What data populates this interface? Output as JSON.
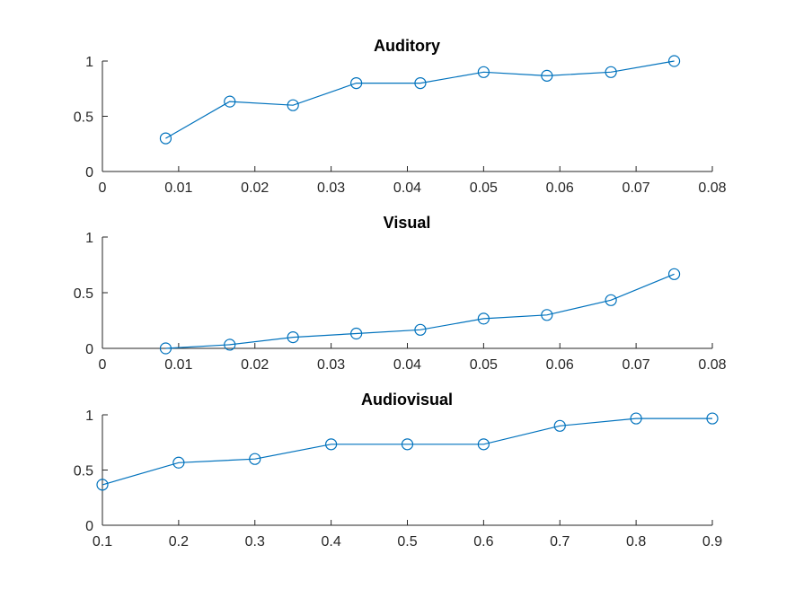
{
  "colors": {
    "series": "#0072BD",
    "axis": "#262626",
    "background": "#ffffff"
  },
  "chart_data": [
    {
      "type": "line",
      "title": "Auditory",
      "xlabel": "",
      "ylabel": "",
      "xlim": [
        0,
        0.08
      ],
      "ylim": [
        0,
        1
      ],
      "xticks": [
        0,
        0.01,
        0.02,
        0.03,
        0.04,
        0.05,
        0.06,
        0.07,
        0.08
      ],
      "xtick_labels": [
        "0",
        "0.01",
        "0.02",
        "0.03",
        "0.04",
        "0.05",
        "0.06",
        "0.07",
        "0.08"
      ],
      "yticks": [
        0,
        0.5,
        1
      ],
      "ytick_labels": [
        "0",
        "0.5",
        "1"
      ],
      "grid": false,
      "marker": "circle",
      "x": [
        0.0083,
        0.0167,
        0.025,
        0.0333,
        0.0417,
        0.05,
        0.0583,
        0.0667,
        0.075
      ],
      "y": [
        0.3,
        0.633,
        0.6,
        0.8,
        0.8,
        0.9,
        0.867,
        0.9,
        1.0
      ]
    },
    {
      "type": "line",
      "title": "Visual",
      "xlabel": "",
      "ylabel": "",
      "xlim": [
        0,
        0.08
      ],
      "ylim": [
        0,
        1
      ],
      "xticks": [
        0,
        0.01,
        0.02,
        0.03,
        0.04,
        0.05,
        0.06,
        0.07,
        0.08
      ],
      "xtick_labels": [
        "0",
        "0.01",
        "0.02",
        "0.03",
        "0.04",
        "0.05",
        "0.06",
        "0.07",
        "0.08"
      ],
      "yticks": [
        0,
        0.5,
        1
      ],
      "ytick_labels": [
        "0",
        "0.5",
        "1"
      ],
      "grid": false,
      "marker": "circle",
      "x": [
        0.0083,
        0.0167,
        0.025,
        0.0333,
        0.0417,
        0.05,
        0.0583,
        0.0667,
        0.075
      ],
      "y": [
        0.0,
        0.033,
        0.1,
        0.133,
        0.167,
        0.267,
        0.3,
        0.433,
        0.667
      ]
    },
    {
      "type": "line",
      "title": "Audiovisual",
      "xlabel": "",
      "ylabel": "",
      "xlim": [
        0.1,
        0.9
      ],
      "ylim": [
        0,
        1
      ],
      "xticks": [
        0.1,
        0.2,
        0.3,
        0.4,
        0.5,
        0.6,
        0.7,
        0.8,
        0.9
      ],
      "xtick_labels": [
        "0.1",
        "0.2",
        "0.3",
        "0.4",
        "0.5",
        "0.6",
        "0.7",
        "0.8",
        "0.9"
      ],
      "yticks": [
        0,
        0.5,
        1
      ],
      "ytick_labels": [
        "0",
        "0.5",
        "1"
      ],
      "grid": false,
      "marker": "circle",
      "x": [
        0.1,
        0.2,
        0.3,
        0.4,
        0.5,
        0.6,
        0.7,
        0.8,
        0.9
      ],
      "y": [
        0.367,
        0.567,
        0.6,
        0.733,
        0.733,
        0.733,
        0.9,
        0.967,
        0.967
      ]
    }
  ]
}
